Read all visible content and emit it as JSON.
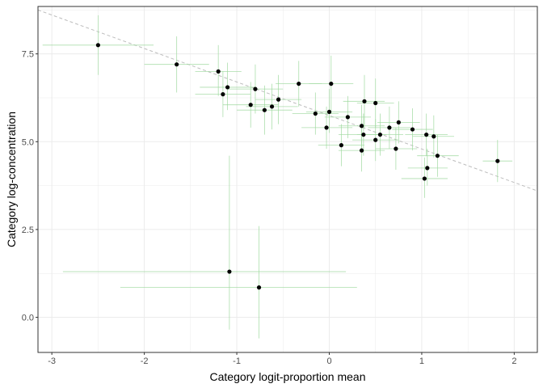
{
  "chart_data": {
    "type": "scatter",
    "title": "",
    "xlabel": "Category logit-proportion mean",
    "ylabel": "Category log-concentration",
    "xlim": [
      -3.15,
      2.25
    ],
    "ylim": [
      -1.0,
      8.85
    ],
    "x_ticks": [
      -3,
      -2,
      -1,
      0,
      1,
      2
    ],
    "x_tick_labels": [
      "-3",
      "-2",
      "-1",
      "0",
      "1",
      "2"
    ],
    "y_ticks": [
      0,
      2.5,
      5,
      7.5
    ],
    "y_tick_labels": [
      "0.0",
      "2.5",
      "5.0",
      "7.5"
    ],
    "grid": true,
    "legend": "none",
    "colors": {
      "point": "#000000",
      "errorbar": "#9ed99e",
      "trend_line": "#bdbdbd",
      "grid": "#ebebeb",
      "panel_border": "#333333"
    },
    "trend_line": {
      "style": "dashed",
      "x": [
        -3.15,
        2.25
      ],
      "y": [
        8.75,
        3.6
      ]
    },
    "points": [
      {
        "x": -2.5,
        "y": 7.75,
        "x_lo": -3.1,
        "x_hi": -1.9,
        "y_lo": 6.9,
        "y_hi": 8.6
      },
      {
        "x": -1.65,
        "y": 7.2,
        "x_lo": -2.0,
        "x_hi": -1.3,
        "y_lo": 6.4,
        "y_hi": 8.0
      },
      {
        "x": -1.2,
        "y": 7.0,
        "x_lo": -1.45,
        "x_hi": -0.95,
        "y_lo": 6.3,
        "y_hi": 7.75
      },
      {
        "x": -1.1,
        "y": 6.55,
        "x_lo": -1.4,
        "x_hi": -0.8,
        "y_lo": 5.9,
        "y_hi": 7.25
      },
      {
        "x": -1.15,
        "y": 6.35,
        "x_lo": -1.45,
        "x_hi": -0.85,
        "y_lo": 5.7,
        "y_hi": 7.0
      },
      {
        "x": -0.8,
        "y": 6.5,
        "x_lo": -1.1,
        "x_hi": -0.5,
        "y_lo": 5.8,
        "y_hi": 7.2
      },
      {
        "x": -0.85,
        "y": 6.05,
        "x_lo": -1.15,
        "x_hi": -0.55,
        "y_lo": 5.4,
        "y_hi": 6.7
      },
      {
        "x": -0.7,
        "y": 5.9,
        "x_lo": -1.0,
        "x_hi": -0.4,
        "y_lo": 5.2,
        "y_hi": 6.6
      },
      {
        "x": -0.62,
        "y": 6.0,
        "x_lo": -0.9,
        "x_hi": -0.34,
        "y_lo": 5.35,
        "y_hi": 6.65
      },
      {
        "x": -0.55,
        "y": 6.2,
        "x_lo": -0.8,
        "x_hi": -0.3,
        "y_lo": 5.5,
        "y_hi": 6.9
      },
      {
        "x": -0.33,
        "y": 6.65,
        "x_lo": -0.58,
        "x_hi": -0.08,
        "y_lo": 6.0,
        "y_hi": 7.3
      },
      {
        "x": 0.02,
        "y": 6.65,
        "x_lo": -0.22,
        "x_hi": 0.26,
        "y_lo": 5.8,
        "y_hi": 7.45
      },
      {
        "x": -0.15,
        "y": 5.8,
        "x_lo": -0.4,
        "x_hi": 0.1,
        "y_lo": 5.2,
        "y_hi": 6.4
      },
      {
        "x": 0.0,
        "y": 5.85,
        "x_lo": -0.25,
        "x_hi": 0.25,
        "y_lo": 5.25,
        "y_hi": 6.5
      },
      {
        "x": 0.2,
        "y": 5.7,
        "x_lo": -0.05,
        "x_hi": 0.45,
        "y_lo": 5.1,
        "y_hi": 6.3
      },
      {
        "x": 0.38,
        "y": 6.15,
        "x_lo": 0.15,
        "x_hi": 0.6,
        "y_lo": 5.4,
        "y_hi": 6.9
      },
      {
        "x": 0.5,
        "y": 6.1,
        "x_lo": 0.3,
        "x_hi": 0.7,
        "y_lo": 5.4,
        "y_hi": 6.8
      },
      {
        "x": -0.03,
        "y": 5.4,
        "x_lo": -0.3,
        "x_hi": 0.25,
        "y_lo": 4.8,
        "y_hi": 6.0
      },
      {
        "x": 0.35,
        "y": 5.45,
        "x_lo": 0.1,
        "x_hi": 0.6,
        "y_lo": 4.85,
        "y_hi": 6.05
      },
      {
        "x": 0.37,
        "y": 5.2,
        "x_lo": 0.1,
        "x_hi": 0.62,
        "y_lo": 4.6,
        "y_hi": 5.8
      },
      {
        "x": 0.55,
        "y": 5.2,
        "x_lo": 0.3,
        "x_hi": 0.8,
        "y_lo": 4.6,
        "y_hi": 5.8
      },
      {
        "x": 0.5,
        "y": 5.05,
        "x_lo": 0.25,
        "x_hi": 0.75,
        "y_lo": 4.45,
        "y_hi": 5.65
      },
      {
        "x": 0.65,
        "y": 5.4,
        "x_lo": 0.42,
        "x_hi": 0.88,
        "y_lo": 4.8,
        "y_hi": 6.0
      },
      {
        "x": 0.75,
        "y": 5.55,
        "x_lo": 0.52,
        "x_hi": 0.98,
        "y_lo": 4.95,
        "y_hi": 6.15
      },
      {
        "x": 0.9,
        "y": 5.35,
        "x_lo": 0.68,
        "x_hi": 1.12,
        "y_lo": 4.75,
        "y_hi": 5.95
      },
      {
        "x": 0.13,
        "y": 4.9,
        "x_lo": -0.12,
        "x_hi": 0.38,
        "y_lo": 4.3,
        "y_hi": 5.5
      },
      {
        "x": 0.35,
        "y": 4.75,
        "x_lo": 0.1,
        "x_hi": 0.6,
        "y_lo": 4.15,
        "y_hi": 5.35
      },
      {
        "x": 0.72,
        "y": 4.8,
        "x_lo": 0.5,
        "x_hi": 0.95,
        "y_lo": 4.2,
        "y_hi": 5.4
      },
      {
        "x": 1.05,
        "y": 5.2,
        "x_lo": 0.82,
        "x_hi": 1.28,
        "y_lo": 4.6,
        "y_hi": 5.8
      },
      {
        "x": 1.13,
        "y": 5.15,
        "x_lo": 0.9,
        "x_hi": 1.35,
        "y_lo": 4.55,
        "y_hi": 5.75
      },
      {
        "x": 1.17,
        "y": 4.6,
        "x_lo": 0.95,
        "x_hi": 1.4,
        "y_lo": 4.0,
        "y_hi": 5.2
      },
      {
        "x": 1.06,
        "y": 4.25,
        "x_lo": 0.85,
        "x_hi": 1.28,
        "y_lo": 3.75,
        "y_hi": 4.8
      },
      {
        "x": 1.03,
        "y": 3.95,
        "x_lo": 0.78,
        "x_hi": 1.28,
        "y_lo": 3.4,
        "y_hi": 4.55
      },
      {
        "x": 1.82,
        "y": 4.45,
        "x_lo": 1.66,
        "x_hi": 1.98,
        "y_lo": 3.85,
        "y_hi": 5.05
      },
      {
        "x": -1.08,
        "y": 1.3,
        "x_lo": -2.88,
        "x_hi": 0.18,
        "y_lo": -0.35,
        "y_hi": 4.6
      },
      {
        "x": -0.76,
        "y": 0.85,
        "x_lo": -2.26,
        "x_hi": 0.3,
        "y_lo": -0.6,
        "y_hi": 2.6
      }
    ]
  }
}
